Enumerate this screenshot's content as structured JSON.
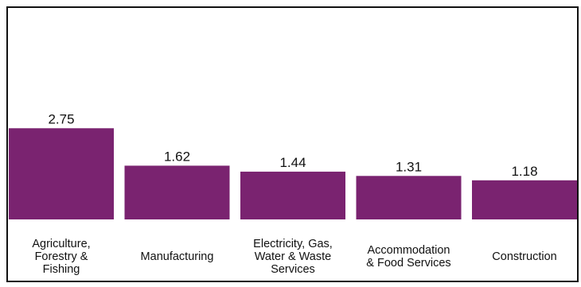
{
  "chart_data": {
    "type": "bar",
    "title": "",
    "xlabel": "",
    "ylabel": "",
    "categories": [
      [
        "Agriculture,",
        "Forestry &",
        "Fishing"
      ],
      [
        "Manufacturing"
      ],
      [
        "Electricity, Gas,",
        "Water & Waste",
        "Services"
      ],
      [
        "Accommodation",
        "& Food Services"
      ],
      [
        "Construction"
      ]
    ],
    "values": [
      2.75,
      1.62,
      1.44,
      1.31,
      1.18
    ],
    "value_labels": [
      "2.75",
      "1.62",
      "1.44",
      "1.31",
      "1.18"
    ],
    "ylim": [
      0,
      6.4
    ],
    "grid": false,
    "legend": "none",
    "colors": {
      "bar": "#7a2370",
      "frame": "#111111",
      "text": "#111111",
      "background": "#ffffff"
    }
  }
}
